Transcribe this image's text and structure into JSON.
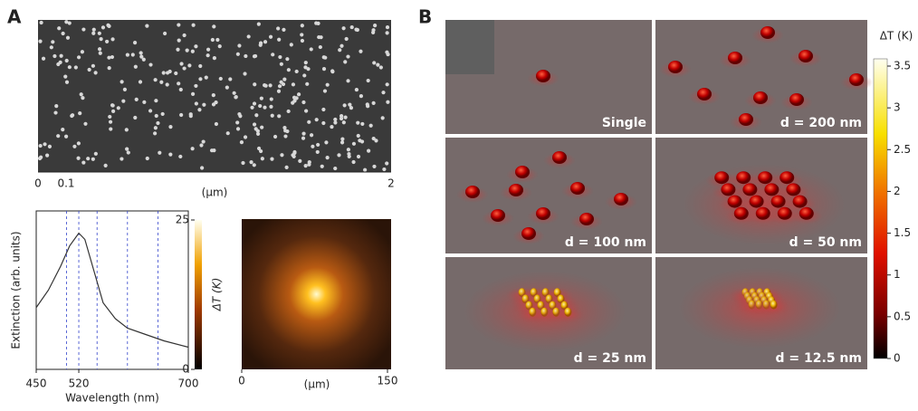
{
  "figure": {
    "panel_a": {
      "label": "A",
      "sem": {
        "scale_labels": [
          "0",
          "0.1",
          "2"
        ],
        "unit": "(μm)"
      },
      "colorbar": {
        "title": "ΔT (K)",
        "lim": [
          0,
          25
        ],
        "ticks": [
          0,
          25
        ]
      },
      "heat_image": {
        "xlim": [
          0,
          150
        ],
        "xticks": [
          0,
          150
        ],
        "xlabel": "(μm)"
      }
    },
    "panel_b": {
      "label": "B",
      "tiles": [
        {
          "label": "Single"
        },
        {
          "label": "d = 200 nm"
        },
        {
          "label": "d = 100 nm"
        },
        {
          "label": "d = 50 nm"
        },
        {
          "label": "d = 25 nm"
        },
        {
          "label": "d = 12.5 nm"
        }
      ],
      "colorbar": {
        "title": "ΔT (K)",
        "lim": [
          0,
          3.5
        ],
        "ticks": [
          0,
          0.5,
          1,
          1.5,
          2,
          2.5,
          3,
          3.5
        ]
      }
    }
  },
  "chart_data": {
    "type": "line",
    "xlabel": "Wavelength (nm)",
    "ylabel": "Extinction (arb. units)",
    "x": [
      450,
      470,
      490,
      505,
      520,
      530,
      545,
      560,
      580,
      600,
      630,
      660,
      700
    ],
    "values": [
      0.39,
      0.5,
      0.65,
      0.78,
      0.86,
      0.82,
      0.62,
      0.42,
      0.32,
      0.26,
      0.22,
      0.18,
      0.14
    ],
    "color": "#333333",
    "xlim": [
      450,
      700
    ],
    "xticks": [
      450,
      520,
      700
    ],
    "ylim": [
      0,
      1
    ],
    "guide_lines": [
      500,
      520,
      550,
      600,
      650
    ],
    "guide_color": "#3344cc"
  }
}
